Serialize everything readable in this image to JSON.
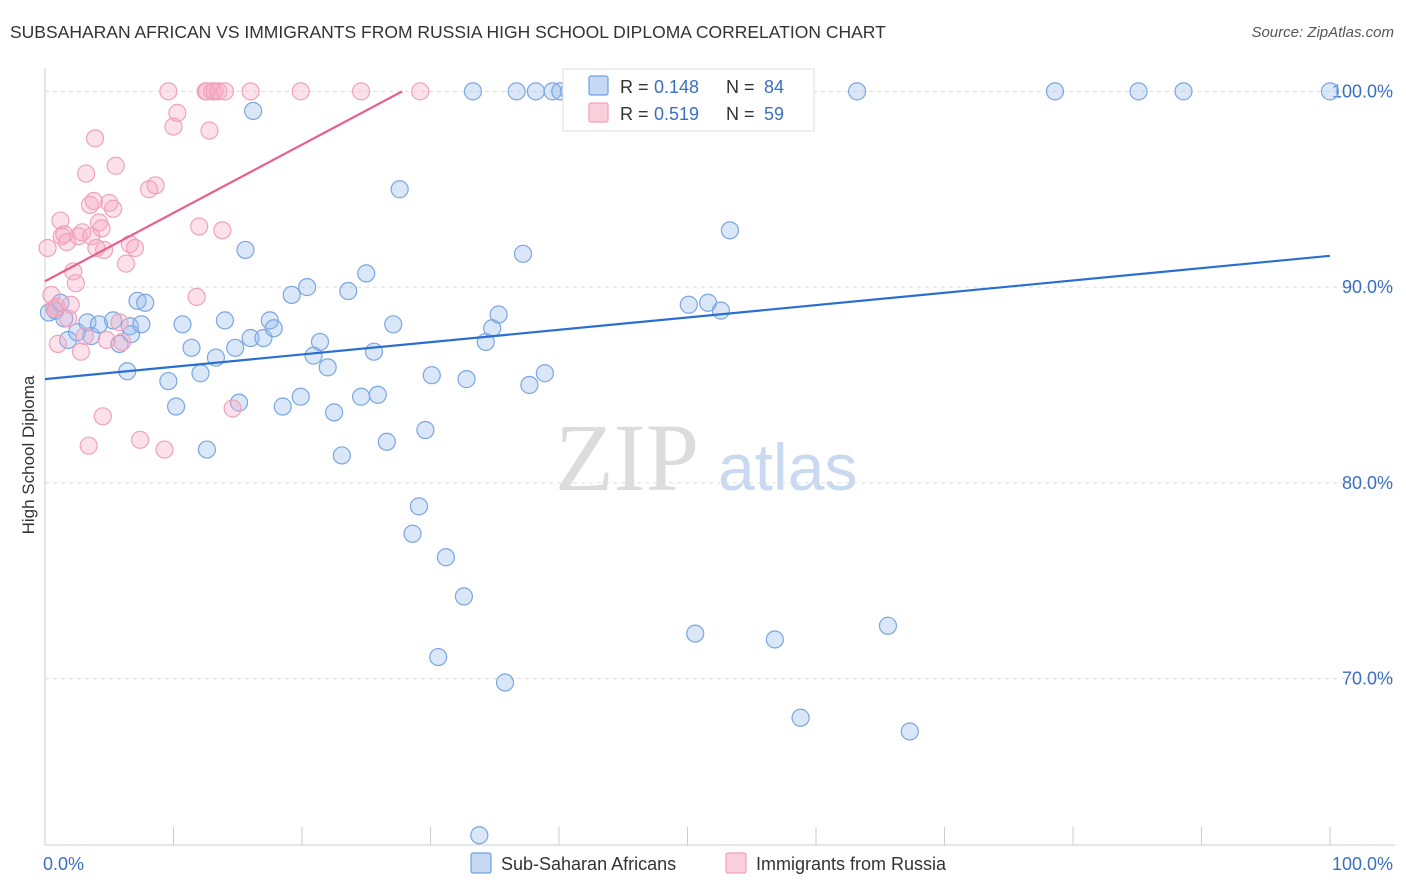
{
  "title": "SUBSAHARAN AFRICAN VS IMMIGRANTS FROM RUSSIA HIGH SCHOOL DIPLOMA CORRELATION CHART",
  "source": "Source: ZipAtlas.com",
  "watermark": {
    "zip": "ZIP",
    "atlas": "atlas"
  },
  "colors": {
    "blue": "#6fa0e0",
    "blue_line": "#2a6fcf",
    "pink": "#f3a0b8",
    "pink_line": "#e8608c",
    "grid": "#dddddd",
    "tick_text": "#3a6fc4"
  },
  "legend": {
    "r_label": "R = ",
    "n_label": "N = ",
    "rows": [
      {
        "r": "0.148",
        "n": "84"
      },
      {
        "r": "0.519",
        "n": "59"
      }
    ]
  },
  "chart_data": {
    "type": "scatter",
    "title": "SUBSAHARAN AFRICAN VS IMMIGRANTS FROM RUSSIA HIGH SCHOOL DIPLOMA CORRELATION CHART",
    "xlabel": "",
    "ylabel": "High School Diploma",
    "xlim": [
      0,
      100
    ],
    "ylim": [
      61.5,
      101.5
    ],
    "x_tick_labels": [
      "0.0%",
      "100.0%"
    ],
    "y_ticks": [
      70,
      80,
      90,
      100
    ],
    "y_tick_labels": [
      "70.0%",
      "80.0%",
      "90.0%",
      "100.0%"
    ],
    "series": [
      {
        "name": "Sub-Saharan Africans",
        "color": "#6fa0e0",
        "trend": {
          "x": [
            0,
            100
          ],
          "y": [
            85.3,
            91.6
          ]
        },
        "points": [
          [
            0.3,
            88.7
          ],
          [
            0.8,
            88.8
          ],
          [
            1.2,
            89.2
          ],
          [
            1.5,
            88.4
          ],
          [
            1.8,
            87.3
          ],
          [
            2.5,
            87.7
          ],
          [
            3.3,
            88.2
          ],
          [
            3.6,
            87.5
          ],
          [
            4.2,
            88.1
          ],
          [
            5.3,
            88.3
          ],
          [
            5.8,
            87.1
          ],
          [
            6.4,
            85.7
          ],
          [
            6.6,
            88.0
          ],
          [
            6.7,
            87.6
          ],
          [
            7.2,
            89.3
          ],
          [
            7.5,
            88.1
          ],
          [
            7.8,
            89.2
          ],
          [
            9.6,
            85.2
          ],
          [
            10.2,
            83.9
          ],
          [
            10.7,
            88.1
          ],
          [
            11.4,
            86.9
          ],
          [
            12.1,
            85.6
          ],
          [
            12.6,
            81.7
          ],
          [
            13.3,
            86.4
          ],
          [
            14.0,
            88.3
          ],
          [
            14.8,
            86.9
          ],
          [
            15.1,
            84.1
          ],
          [
            15.6,
            91.9
          ],
          [
            16.0,
            87.4
          ],
          [
            16.2,
            99.0
          ],
          [
            17.0,
            87.4
          ],
          [
            17.5,
            88.3
          ],
          [
            17.8,
            87.9
          ],
          [
            18.5,
            83.9
          ],
          [
            19.2,
            89.6
          ],
          [
            19.9,
            84.4
          ],
          [
            20.4,
            90.0
          ],
          [
            20.9,
            86.5
          ],
          [
            21.4,
            87.2
          ],
          [
            22.0,
            85.9
          ],
          [
            22.5,
            83.6
          ],
          [
            23.1,
            81.4
          ],
          [
            23.6,
            89.8
          ],
          [
            24.6,
            84.4
          ],
          [
            25.0,
            90.7
          ],
          [
            25.6,
            86.7
          ],
          [
            25.9,
            84.5
          ],
          [
            26.6,
            82.1
          ],
          [
            27.1,
            88.1
          ],
          [
            27.6,
            95.0
          ],
          [
            28.6,
            77.4
          ],
          [
            29.1,
            78.8
          ],
          [
            29.6,
            82.7
          ],
          [
            30.1,
            85.5
          ],
          [
            30.6,
            71.1
          ],
          [
            31.2,
            76.2
          ],
          [
            32.6,
            74.2
          ],
          [
            32.8,
            85.3
          ],
          [
            33.3,
            100.0
          ],
          [
            33.8,
            62.0
          ],
          [
            34.3,
            87.2
          ],
          [
            34.8,
            87.9
          ],
          [
            35.3,
            88.6
          ],
          [
            35.8,
            69.8
          ],
          [
            36.7,
            100.0
          ],
          [
            37.2,
            91.7
          ],
          [
            37.7,
            85.0
          ],
          [
            38.2,
            100.0
          ],
          [
            38.9,
            85.6
          ],
          [
            39.5,
            100.0
          ],
          [
            40.1,
            100.0
          ],
          [
            40.8,
            100.0
          ],
          [
            50.1,
            89.1
          ],
          [
            50.6,
            72.3
          ],
          [
            51.6,
            89.2
          ],
          [
            52.6,
            88.8
          ],
          [
            53.3,
            92.9
          ],
          [
            56.8,
            72.0
          ],
          [
            58.8,
            68.0
          ],
          [
            63.2,
            100.0
          ],
          [
            65.6,
            72.7
          ],
          [
            67.3,
            67.3
          ],
          [
            78.6,
            100.0
          ],
          [
            85.1,
            100.0
          ],
          [
            88.6,
            100.0
          ],
          [
            100.0,
            100.0
          ]
        ]
      },
      {
        "name": "Immigrants from Russia",
        "color": "#f3a0b8",
        "trend": {
          "x": [
            0,
            27.8
          ],
          "y": [
            90.3,
            100.0
          ]
        },
        "points": [
          [
            0.2,
            92.0
          ],
          [
            0.5,
            89.6
          ],
          [
            0.7,
            88.9
          ],
          [
            0.9,
            89.0
          ],
          [
            1.0,
            87.1
          ],
          [
            1.2,
            93.4
          ],
          [
            1.3,
            92.6
          ],
          [
            1.5,
            92.7
          ],
          [
            1.7,
            92.3
          ],
          [
            1.8,
            88.4
          ],
          [
            2.0,
            89.1
          ],
          [
            2.2,
            90.8
          ],
          [
            2.4,
            90.2
          ],
          [
            2.6,
            92.6
          ],
          [
            2.8,
            86.7
          ],
          [
            2.9,
            92.8
          ],
          [
            3.1,
            87.5
          ],
          [
            3.2,
            95.8
          ],
          [
            3.4,
            81.9
          ],
          [
            3.5,
            94.2
          ],
          [
            3.6,
            92.6
          ],
          [
            3.8,
            94.4
          ],
          [
            3.9,
            97.6
          ],
          [
            4.0,
            92.0
          ],
          [
            4.2,
            93.3
          ],
          [
            4.4,
            93.0
          ],
          [
            4.5,
            83.4
          ],
          [
            4.6,
            91.9
          ],
          [
            4.8,
            87.3
          ],
          [
            5.0,
            94.3
          ],
          [
            5.3,
            94.0
          ],
          [
            5.5,
            96.2
          ],
          [
            5.8,
            88.2
          ],
          [
            6.0,
            87.2
          ],
          [
            6.3,
            91.2
          ],
          [
            6.6,
            92.2
          ],
          [
            7.0,
            92.0
          ],
          [
            7.4,
            82.2
          ],
          [
            8.1,
            95.0
          ],
          [
            8.6,
            95.2
          ],
          [
            9.3,
            81.7
          ],
          [
            9.6,
            100.0
          ],
          [
            10.0,
            98.2
          ],
          [
            10.3,
            98.9
          ],
          [
            11.8,
            89.5
          ],
          [
            12.0,
            93.1
          ],
          [
            12.5,
            100.0
          ],
          [
            12.6,
            100.0
          ],
          [
            12.8,
            98.0
          ],
          [
            13.0,
            100.0
          ],
          [
            13.2,
            100.0
          ],
          [
            13.5,
            100.0
          ],
          [
            13.8,
            92.9
          ],
          [
            14.0,
            100.0
          ],
          [
            14.6,
            83.8
          ],
          [
            16.0,
            100.0
          ],
          [
            19.9,
            100.0
          ],
          [
            24.6,
            100.0
          ],
          [
            29.2,
            100.0
          ]
        ]
      }
    ]
  }
}
